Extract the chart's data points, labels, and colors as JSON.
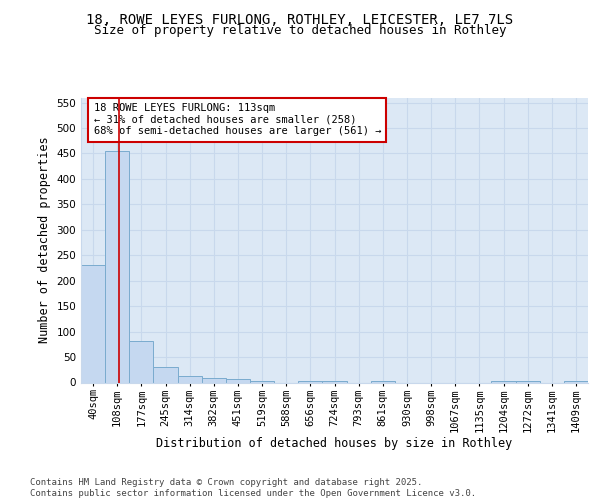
{
  "title_line1": "18, ROWE LEYES FURLONG, ROTHLEY, LEICESTER, LE7 7LS",
  "title_line2": "Size of property relative to detached houses in Rothley",
  "xlabel": "Distribution of detached houses by size in Rothley",
  "ylabel": "Number of detached properties",
  "bar_labels": [
    "40sqm",
    "108sqm",
    "177sqm",
    "245sqm",
    "314sqm",
    "382sqm",
    "451sqm",
    "519sqm",
    "588sqm",
    "656sqm",
    "724sqm",
    "793sqm",
    "861sqm",
    "930sqm",
    "998sqm",
    "1067sqm",
    "1135sqm",
    "1204sqm",
    "1272sqm",
    "1341sqm",
    "1409sqm"
  ],
  "bar_values": [
    230,
    455,
    82,
    30,
    12,
    8,
    7,
    3,
    0,
    3,
    3,
    0,
    3,
    0,
    0,
    0,
    0,
    3,
    3,
    0,
    3
  ],
  "bar_color": "#c5d8f0",
  "bar_edge_color": "#7aabce",
  "grid_color": "#c8d8ec",
  "background_color": "#dce8f5",
  "fig_background": "#ffffff",
  "red_line_x": 1.07,
  "annotation_text": "18 ROWE LEYES FURLONG: 113sqm\n← 31% of detached houses are smaller (258)\n68% of semi-detached houses are larger (561) →",
  "annotation_box_color": "#cc0000",
  "ylim": [
    0,
    560
  ],
  "yticks": [
    0,
    50,
    100,
    150,
    200,
    250,
    300,
    350,
    400,
    450,
    500,
    550
  ],
  "footer_text": "Contains HM Land Registry data © Crown copyright and database right 2025.\nContains public sector information licensed under the Open Government Licence v3.0.",
  "title_fontsize": 10,
  "subtitle_fontsize": 9,
  "axis_label_fontsize": 8.5,
  "tick_fontsize": 7.5,
  "annotation_fontsize": 7.5,
  "footer_fontsize": 6.5
}
